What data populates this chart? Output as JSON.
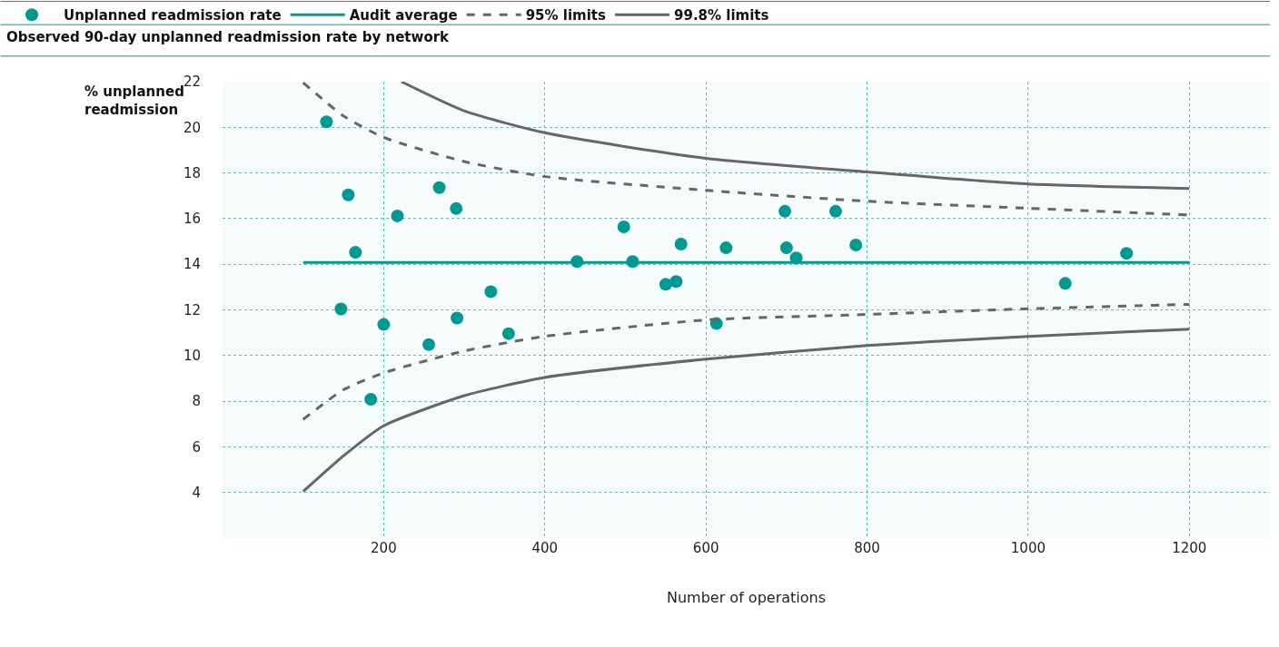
{
  "chart_data": {
    "type": "scatter",
    "title": "Observed 90-day unplanned readmission rate by network",
    "xlabel": "Number of operations",
    "ylabel": "% unplanned readmission",
    "xlim": [
      0,
      1300
    ],
    "ylim": [
      2,
      22
    ],
    "xticks": [
      {
        "value": 0,
        "label": null
      },
      200,
      400,
      600,
      800,
      1000,
      1200
    ],
    "yticks": [
      4,
      6,
      8,
      10,
      12,
      14,
      16,
      18,
      20,
      22
    ],
    "grid": true,
    "legend": "top",
    "series": [
      {
        "name": "Unplanned readmission rate",
        "color": "#009a93",
        "marker": "circle",
        "x": [
          129,
          156,
          165,
          147,
          200,
          184,
          217,
          269,
          290,
          256,
          291,
          333,
          355,
          440,
          498,
          509,
          550,
          563,
          569,
          613,
          625,
          698,
          700,
          712,
          761,
          786,
          1046,
          1122
        ],
        "values": [
          20.24,
          17.04,
          14.52,
          12.04,
          11.36,
          8.08,
          16.12,
          17.36,
          16.44,
          10.48,
          11.64,
          12.8,
          10.96,
          14.12,
          15.64,
          14.12,
          13.12,
          13.24,
          14.88,
          11.4,
          14.72,
          16.32,
          14.72,
          14.28,
          16.32,
          14.84,
          13.16,
          14.48
        ]
      },
      {
        "name": "Audit average",
        "color": "#009a93",
        "type": "line",
        "line_style": "solid",
        "x": [
          100,
          1200
        ],
        "values": [
          14.08,
          14.08
        ]
      },
      {
        "name": "95% limits",
        "color": "#666666",
        "type": "line",
        "line_style": "dashed",
        "x": [
          100,
          150,
          200,
          300,
          400,
          600,
          800,
          1000,
          1200
        ],
        "values": [
          21.96,
          20.5,
          19.56,
          18.5,
          17.84,
          17.24,
          16.76,
          16.45,
          16.16
        ]
      },
      {
        "color": "#666666",
        "type": "line",
        "line_style": "dashed",
        "x": [
          100,
          150,
          200,
          300,
          400,
          600,
          800,
          1000,
          1200
        ],
        "values": [
          7.2,
          8.5,
          9.24,
          10.2,
          10.84,
          11.56,
          11.8,
          12.05,
          12.24
        ]
      },
      {
        "name": "99.8% limits",
        "color": "#666666",
        "type": "line",
        "line_style": "solid",
        "x": [
          222,
          300,
          400,
          600,
          800,
          1000,
          1200
        ],
        "values": [
          22,
          20.72,
          19.76,
          18.64,
          18.04,
          17.52,
          17.32
        ]
      },
      {
        "color": "#666666",
        "type": "line",
        "line_style": "solid",
        "x": [
          100,
          150,
          200,
          300,
          400,
          600,
          800,
          1000,
          1200
        ],
        "values": [
          4.04,
          5.6,
          6.92,
          8.24,
          9.04,
          9.84,
          10.44,
          10.84,
          11.16
        ]
      }
    ]
  }
}
